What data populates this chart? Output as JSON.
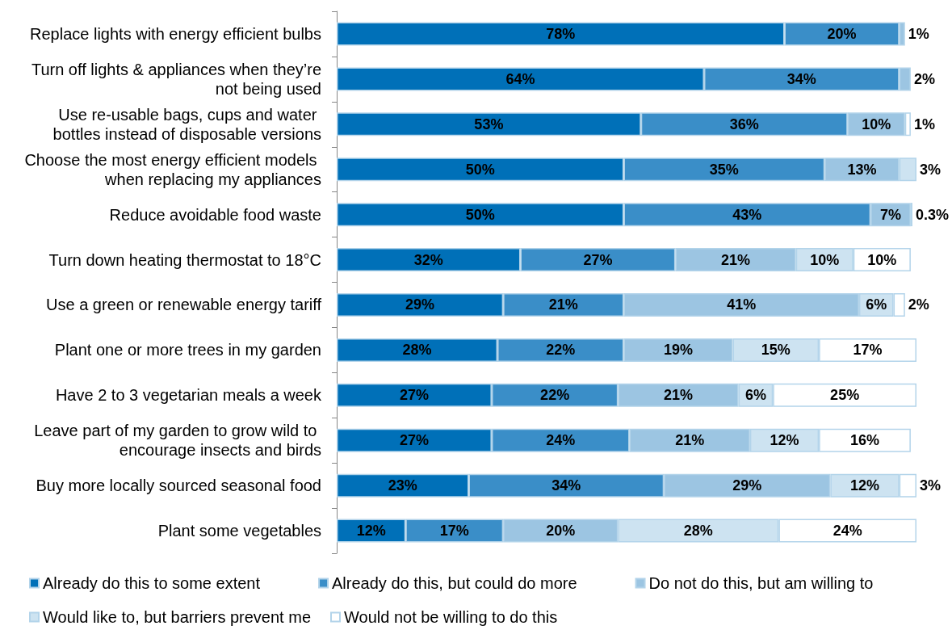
{
  "chart_data": {
    "type": "bar",
    "orientation": "horizontal",
    "stacked": true,
    "legend": "bottom",
    "categories": [
      "Replace lights with energy efficient bulbs",
      "Turn off lights & appliances when they’re not being used",
      "Use re-usable bags, cups and water bottles instead of disposable versions",
      "Choose the most energy efficient models when replacing my appliances",
      "Reduce avoidable food waste",
      "Turn down heating thermostat to 18°C",
      "Use a green or renewable energy tariff",
      "Plant one or more trees in my garden",
      "Have 2 to 3 vegetarian meals a week",
      "Leave part of my garden to grow wild to encourage insects and birds",
      "Buy more locally sourced seasonal food",
      "Plant some vegetables"
    ],
    "series": [
      {
        "name": "Already do this to some extent",
        "color": "#0070b8",
        "values": [
          78,
          64,
          53,
          50,
          50,
          32,
          29,
          28,
          27,
          27,
          23,
          12
        ],
        "value_labels": [
          "78%",
          "64%",
          "53%",
          "50%",
          "50%",
          "32%",
          "29%",
          "28%",
          "27%",
          "27%",
          "23%",
          "12%"
        ]
      },
      {
        "name": "Already do this, but could do more",
        "color": "#3a8ec8",
        "values": [
          20,
          34,
          36,
          35,
          43,
          27,
          21,
          22,
          22,
          24,
          34,
          17
        ],
        "value_labels": [
          "20%",
          "34%",
          "36%",
          "35%",
          "43%",
          "27%",
          "21%",
          "22%",
          "22%",
          "24%",
          "34%",
          "17%"
        ]
      },
      {
        "name": "Do not do this, but am willing to",
        "color": "#9cc5e2",
        "values": [
          1,
          2,
          10,
          13,
          7,
          21,
          41,
          19,
          21,
          21,
          29,
          20
        ],
        "value_labels": [
          "1%",
          "2%",
          "10%",
          "13%",
          "7%",
          "21%",
          "41%",
          "19%",
          "21%",
          "21%",
          "29%",
          "20%"
        ]
      },
      {
        "name": "Would like to, but barriers prevent me",
        "color": "#cde3f1",
        "values": [
          null,
          null,
          null,
          3,
          0.3,
          10,
          6,
          15,
          6,
          12,
          12,
          28
        ],
        "value_labels": [
          null,
          null,
          null,
          "3%",
          "0.3%",
          "10%",
          "6%",
          "15%",
          "6%",
          "12%",
          "12%",
          "28%"
        ]
      },
      {
        "name": "Would not be willing to do this",
        "color": "#ffffff",
        "values": [
          null,
          null,
          1,
          null,
          null,
          10,
          2,
          17,
          25,
          16,
          3,
          24
        ],
        "value_labels": [
          null,
          null,
          "1%",
          null,
          null,
          "10%",
          "2%",
          "17%",
          "25%",
          "16%",
          "3%",
          "24%"
        ]
      }
    ]
  }
}
